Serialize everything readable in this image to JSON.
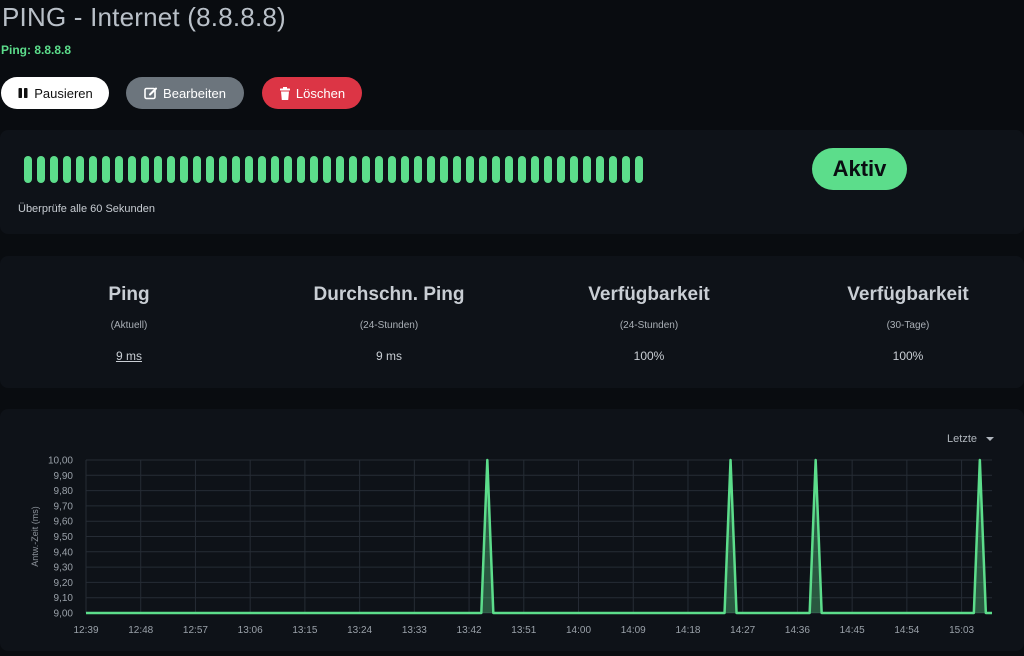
{
  "header": {
    "title": "PING - Internet (8.8.8.8)",
    "subtitle": "Ping: 8.8.8.8"
  },
  "toolbar": {
    "pause_label": "Pausieren",
    "edit_label": "Bearbeiten",
    "delete_label": "Löschen"
  },
  "status": {
    "beat_count": 48,
    "beat_color": "#5cdd8b",
    "check_text": "Überprüfe alle 60 Sekunden",
    "badge": "Aktiv"
  },
  "stats": [
    {
      "title": "Ping",
      "sub": "(Aktuell)",
      "value": "9 ms"
    },
    {
      "title": "Durchschn. Ping",
      "sub": "(24-Stunden)",
      "value": "9 ms"
    },
    {
      "title": "Verfügbarkeit",
      "sub": "(24-Stunden)",
      "value": "100%"
    },
    {
      "title": "Verfügbarkeit",
      "sub": "(30-Tage)",
      "value": "100%"
    }
  ],
  "chart": {
    "period_label": "Letzte"
  },
  "chart_data": {
    "type": "line",
    "ylabel": "Antw.-Zeit (ms)",
    "ylim": [
      9.0,
      10.0
    ],
    "yticks": [
      "9,00",
      "9,10",
      "9,20",
      "9,30",
      "9,40",
      "9,50",
      "9,60",
      "9,70",
      "9,80",
      "9,90",
      "10,00"
    ],
    "xticks": [
      "12:39",
      "12:48",
      "12:57",
      "13:06",
      "13:15",
      "13:24",
      "13:33",
      "13:42",
      "13:51",
      "14:00",
      "14:09",
      "14:18",
      "14:27",
      "14:36",
      "14:45",
      "14:54",
      "15:03"
    ],
    "x_minutes_range": [
      "12:39",
      "15:08"
    ],
    "baseline": 9.0,
    "spikes": [
      {
        "x": "13:45",
        "y": 10.0
      },
      {
        "x": "14:25",
        "y": 10.0
      },
      {
        "x": "14:39",
        "y": 10.0
      },
      {
        "x": "15:06",
        "y": 10.0
      }
    ],
    "line_color": "#5cdd8b",
    "grid": true
  }
}
